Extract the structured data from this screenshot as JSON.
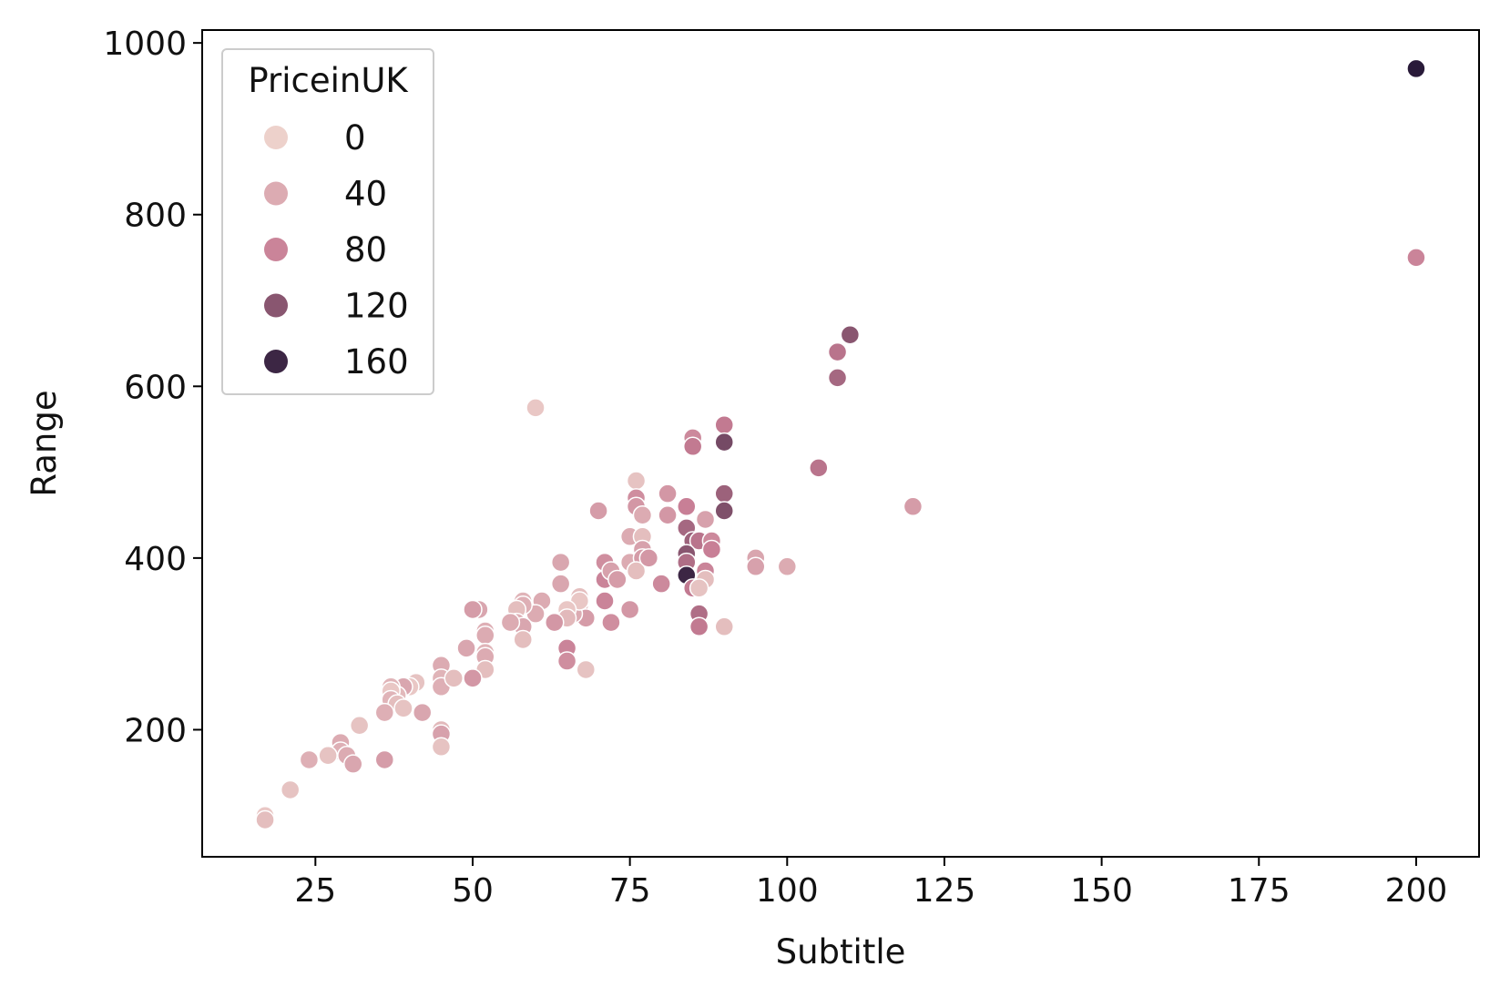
{
  "chart_data": {
    "type": "scatter",
    "xlabel": "Subtitle",
    "ylabel": "Range",
    "xlim": [
      7,
      210
    ],
    "ylim": [
      52,
      1015
    ],
    "x_ticks": [
      25,
      50,
      75,
      100,
      125,
      150,
      175,
      200
    ],
    "y_ticks": [
      200,
      400,
      600,
      800,
      1000
    ],
    "grid": false,
    "hue": "PriceinUK",
    "hue_range": [
      0,
      175
    ],
    "hue_colors": [
      "#edd1cb",
      "#1f1433"
    ],
    "legend": {
      "title": "PriceinUK",
      "placement": "upper-left",
      "entries": [
        {
          "label": "0",
          "value": 0
        },
        {
          "label": "40",
          "value": 40
        },
        {
          "label": "80",
          "value": 80
        },
        {
          "label": "120",
          "value": 120
        },
        {
          "label": "160",
          "value": 160
        }
      ]
    },
    "points": [
      [
        200,
        970,
        170
      ],
      [
        200,
        750,
        80
      ],
      [
        110,
        660,
        120
      ],
      [
        108,
        640,
        95
      ],
      [
        108,
        610,
        105
      ],
      [
        105,
        505,
        95
      ],
      [
        120,
        460,
        55
      ],
      [
        90,
        555,
        90
      ],
      [
        90,
        535,
        130
      ],
      [
        85,
        540,
        75
      ],
      [
        85,
        530,
        90
      ],
      [
        90,
        475,
        110
      ],
      [
        90,
        455,
        125
      ],
      [
        60,
        575,
        10
      ],
      [
        76,
        490,
        15
      ],
      [
        76,
        470,
        70
      ],
      [
        76,
        460,
        60
      ],
      [
        77,
        450,
        40
      ],
      [
        81,
        475,
        60
      ],
      [
        81,
        450,
        60
      ],
      [
        70,
        455,
        55
      ],
      [
        84,
        460,
        85
      ],
      [
        84,
        435,
        105
      ],
      [
        85,
        420,
        110
      ],
      [
        86,
        420,
        95
      ],
      [
        87,
        445,
        50
      ],
      [
        88,
        420,
        75
      ],
      [
        88,
        410,
        85
      ],
      [
        87,
        385,
        80
      ],
      [
        84,
        405,
        120
      ],
      [
        84,
        395,
        100
      ],
      [
        84,
        380,
        160
      ],
      [
        85,
        365,
        90
      ],
      [
        87,
        375,
        20
      ],
      [
        86,
        365,
        15
      ],
      [
        86,
        335,
        100
      ],
      [
        86,
        320,
        90
      ],
      [
        90,
        320,
        20
      ],
      [
        95,
        400,
        45
      ],
      [
        95,
        390,
        50
      ],
      [
        100,
        390,
        40
      ],
      [
        80,
        370,
        75
      ],
      [
        75,
        395,
        40
      ],
      [
        75,
        425,
        40
      ],
      [
        77,
        425,
        20
      ],
      [
        77,
        410,
        50
      ],
      [
        77,
        400,
        55
      ],
      [
        76,
        385,
        20
      ],
      [
        78,
        400,
        60
      ],
      [
        71,
        395,
        70
      ],
      [
        71,
        375,
        80
      ],
      [
        72,
        385,
        50
      ],
      [
        73,
        375,
        55
      ],
      [
        71,
        350,
        80
      ],
      [
        72,
        325,
        70
      ],
      [
        75,
        340,
        60
      ],
      [
        64,
        395,
        45
      ],
      [
        64,
        370,
        45
      ],
      [
        67,
        355,
        20
      ],
      [
        67,
        345,
        30
      ],
      [
        66,
        340,
        15
      ],
      [
        68,
        330,
        55
      ],
      [
        66,
        335,
        40
      ],
      [
        67,
        350,
        10
      ],
      [
        65,
        340,
        10
      ],
      [
        65,
        330,
        25
      ],
      [
        68,
        270,
        15
      ],
      [
        61,
        350,
        40
      ],
      [
        63,
        325,
        60
      ],
      [
        60,
        335,
        40
      ],
      [
        58,
        350,
        30
      ],
      [
        58,
        345,
        35
      ],
      [
        57,
        340,
        20
      ],
      [
        57,
        325,
        35
      ],
      [
        58,
        320,
        45
      ],
      [
        58,
        305,
        20
      ],
      [
        56,
        325,
        40
      ],
      [
        65,
        295,
        80
      ],
      [
        65,
        280,
        70
      ],
      [
        51,
        340,
        45
      ],
      [
        50,
        340,
        55
      ],
      [
        52,
        315,
        35
      ],
      [
        52,
        310,
        40
      ],
      [
        52,
        290,
        30
      ],
      [
        52,
        285,
        40
      ],
      [
        52,
        270,
        20
      ],
      [
        50,
        260,
        60
      ],
      [
        49,
        295,
        45
      ],
      [
        45,
        275,
        40
      ],
      [
        45,
        260,
        30
      ],
      [
        45,
        250,
        35
      ],
      [
        47,
        260,
        20
      ],
      [
        45,
        200,
        25
      ],
      [
        45,
        195,
        50
      ],
      [
        45,
        180,
        15
      ],
      [
        42,
        220,
        45
      ],
      [
        41,
        255,
        15
      ],
      [
        40,
        250,
        10
      ],
      [
        39,
        250,
        45
      ],
      [
        38,
        240,
        25
      ],
      [
        37,
        250,
        30
      ],
      [
        37,
        245,
        10
      ],
      [
        37,
        235,
        30
      ],
      [
        38,
        230,
        20
      ],
      [
        39,
        225,
        15
      ],
      [
        36,
        220,
        35
      ],
      [
        32,
        205,
        15
      ],
      [
        29,
        185,
        40
      ],
      [
        29,
        175,
        35
      ],
      [
        30,
        170,
        40
      ],
      [
        31,
        160,
        45
      ],
      [
        36,
        165,
        55
      ],
      [
        27,
        170,
        15
      ],
      [
        24,
        165,
        35
      ],
      [
        21,
        130,
        15
      ],
      [
        17,
        100,
        10
      ],
      [
        17,
        95,
        20
      ]
    ]
  }
}
